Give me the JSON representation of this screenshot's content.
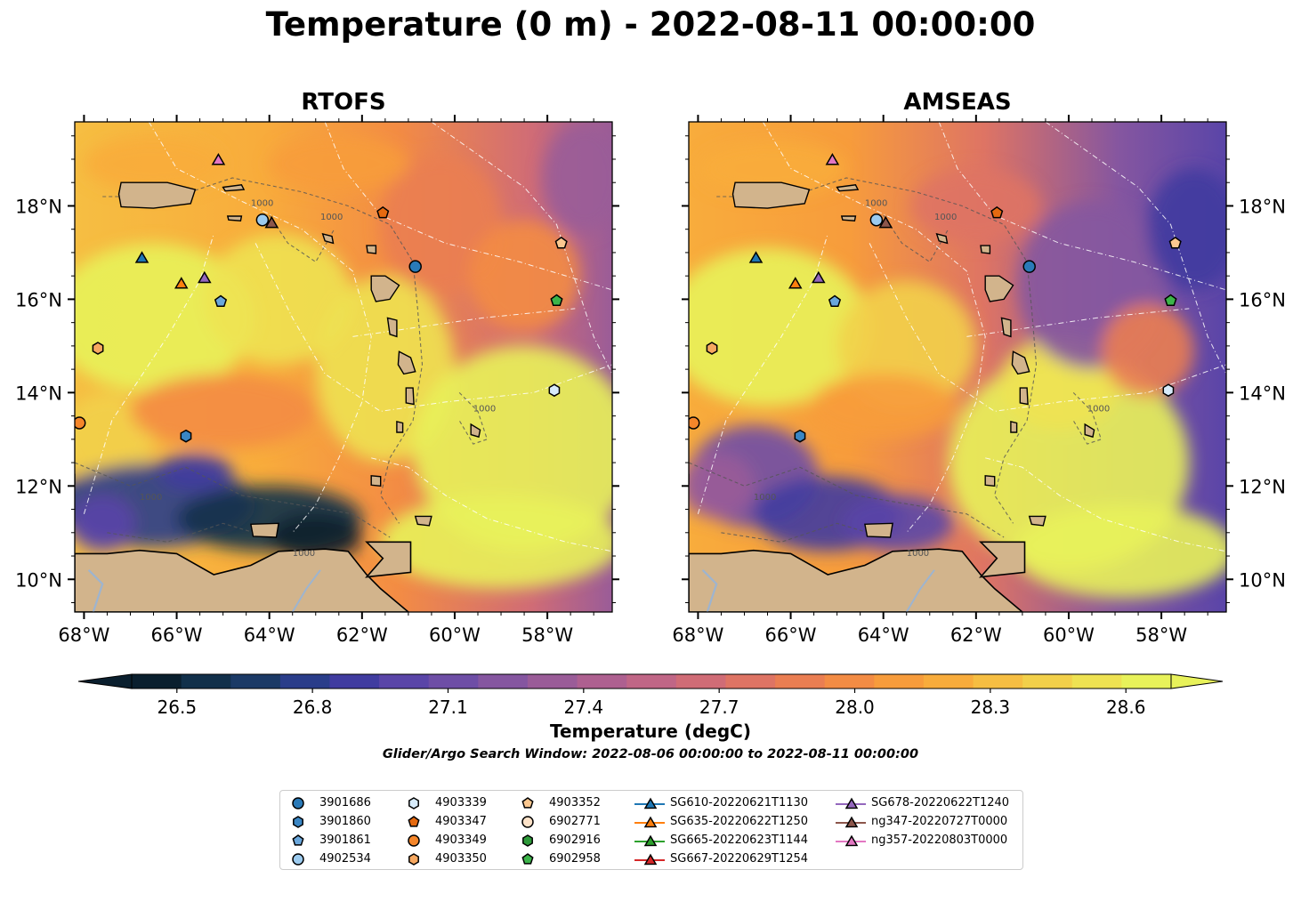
{
  "title": "Temperature (0 m) - 2022-08-11 00:00:00",
  "panels": [
    {
      "title": "RTOFS"
    },
    {
      "title": "AMSEAS"
    }
  ],
  "axes": {
    "lat_labels": [
      "18°N",
      "16°N",
      "14°N",
      "12°N",
      "10°N"
    ],
    "lon_labels": [
      "68°W",
      "66°W",
      "64°W",
      "62°W",
      "60°W",
      "58°W"
    ],
    "lon_range": [
      -68.2,
      -56.6
    ],
    "lat_range": [
      9.3,
      19.8
    ]
  },
  "contour_label": "1000",
  "colorbar": {
    "label": "Temperature (degC)",
    "ticks": [
      "26.5",
      "26.8",
      "27.1",
      "27.4",
      "27.7",
      "28.0",
      "28.3",
      "28.6"
    ],
    "min": 26.4,
    "max": 28.7,
    "colors": [
      "#0a1f2e",
      "#11304a",
      "#1b3a66",
      "#2a3d8a",
      "#403ca0",
      "#5a45a8",
      "#6e4ea6",
      "#8556a0",
      "#9a5c98",
      "#ae6090",
      "#c06686",
      "#d06c76",
      "#de7464",
      "#ea7e52",
      "#f38c44",
      "#f79c3c",
      "#f8ac3c",
      "#f6be42",
      "#f2d04a",
      "#eee252",
      "#e8f25a"
    ]
  },
  "search_window": "Glider/Argo Search Window: 2022-08-06 00:00:00 to 2022-08-11 00:00:00",
  "legend": [
    {
      "label": "3901686",
      "marker": "circle",
      "color": "#2a7ab8"
    },
    {
      "label": "3901860",
      "marker": "hexagon",
      "color": "#3a86c4"
    },
    {
      "label": "3901861",
      "marker": "pentagon",
      "color": "#6aa7dc"
    },
    {
      "label": "4902534",
      "marker": "circle",
      "color": "#9ccbef"
    },
    {
      "label": "4903339",
      "marker": "hexagon",
      "color": "#d7ebfa"
    },
    {
      "label": "4903347",
      "marker": "pentagon",
      "color": "#e66a10"
    },
    {
      "label": "4903349",
      "marker": "circle",
      "color": "#f5862a"
    },
    {
      "label": "4903350",
      "marker": "hexagon",
      "color": "#f7a860"
    },
    {
      "label": "4903352",
      "marker": "pentagon",
      "color": "#fbc890"
    },
    {
      "label": "6902771",
      "marker": "circle",
      "color": "#fde2c8"
    },
    {
      "label": "6902916",
      "marker": "hexagon",
      "color": "#2e9a3a"
    },
    {
      "label": "6902958",
      "marker": "pentagon",
      "color": "#3cb44a"
    },
    {
      "label": "SG610-20220621T1130",
      "marker": "triangle",
      "color": "#1f77b4"
    },
    {
      "label": "SG635-20220622T1250",
      "marker": "triangle",
      "color": "#ff7f0e"
    },
    {
      "label": "SG665-20220623T1144",
      "marker": "triangle",
      "color": "#2ca02c"
    },
    {
      "label": "SG667-20220629T1254",
      "marker": "triangle",
      "color": "#d62728"
    },
    {
      "label": "SG678-20220622T1240",
      "marker": "triangle",
      "color": "#9467bd"
    },
    {
      "label": "ng347-20220727T0000",
      "marker": "triangle",
      "color": "#8c564b"
    },
    {
      "label": "ng357-20220803T0000",
      "marker": "triangle",
      "color": "#e377c2"
    }
  ],
  "observations": [
    {
      "name": "3901686",
      "lon": -60.85,
      "lat": 16.7
    },
    {
      "name": "3901860",
      "lon": -65.8,
      "lat": 13.07
    },
    {
      "name": "3901861",
      "lon": -65.05,
      "lat": 15.95
    },
    {
      "name": "4902534",
      "lon": -64.15,
      "lat": 17.7
    },
    {
      "name": "4903339",
      "lon": -57.85,
      "lat": 14.05
    },
    {
      "name": "4903347",
      "lon": -61.55,
      "lat": 17.85
    },
    {
      "name": "4903349",
      "lon": -68.1,
      "lat": 13.35
    },
    {
      "name": "4903350",
      "lon": -67.7,
      "lat": 14.95
    },
    {
      "name": "4903352",
      "lon": -57.7,
      "lat": 17.2
    },
    {
      "name": "6902958",
      "lon": -57.8,
      "lat": 15.97
    },
    {
      "name": "SG610-20220621T1130",
      "lon": -66.75,
      "lat": 16.9
    },
    {
      "name": "SG635-20220622T1250",
      "lon": -65.9,
      "lat": 16.35
    },
    {
      "name": "SG678-20220622T1240",
      "lon": -65.4,
      "lat": 16.47
    },
    {
      "name": "ng347-20220727T0000",
      "lon": -63.95,
      "lat": 17.65
    },
    {
      "name": "ng357-20220803T0000",
      "lon": -65.1,
      "lat": 19.0
    }
  ]
}
